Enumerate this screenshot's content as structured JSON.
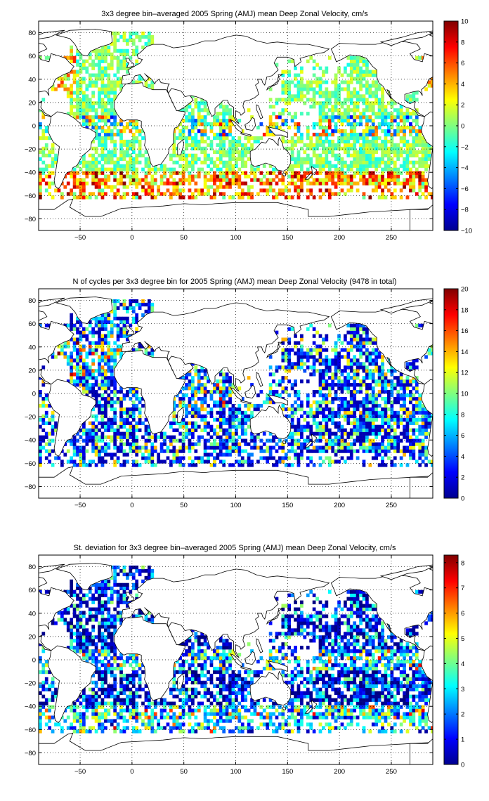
{
  "chart_data": [
    {
      "type": "heatmap",
      "title": "3x3 degree bin–averaged 2005 Spring (AMJ) mean Deep Zonal Velocity, cm/s",
      "xlabel": "",
      "ylabel": "",
      "xlim": [
        -90,
        290
      ],
      "ylim": [
        -90,
        90
      ],
      "xticks": [
        -50,
        0,
        50,
        100,
        150,
        200,
        250
      ],
      "xticklabels": [
        "−50",
        "0",
        "50",
        "100",
        "150",
        "200",
        "250"
      ],
      "yticks": [
        80,
        60,
        40,
        20,
        0,
        -20,
        -40,
        -60,
        -80
      ],
      "yticklabels": [
        "80",
        "60",
        "40",
        "20",
        "0",
        "−20",
        "−40",
        "−60",
        "−80"
      ],
      "grid": true,
      "bin_size_deg": 3,
      "colorbar": {
        "range": [
          -10,
          10
        ],
        "ticks": [
          10,
          8,
          6,
          4,
          2,
          0,
          -2,
          -4,
          -6,
          -8,
          -10
        ],
        "ticklabels": [
          "10",
          "8",
          "6",
          "4",
          "2",
          "0",
          "−2",
          "−4",
          "−6",
          "−8",
          "−10"
        ],
        "colormap": "jet"
      },
      "field": "velocity",
      "data_note": "cell values approximated"
    },
    {
      "type": "heatmap",
      "title": "N of cycles per 3x3 degree bin for 2005 Spring (AMJ) mean Deep Zonal Velocity (9478 in total)",
      "xlabel": "",
      "ylabel": "",
      "xlim": [
        -90,
        290
      ],
      "ylim": [
        -90,
        90
      ],
      "xticks": [
        -50,
        0,
        50,
        100,
        150,
        200,
        250
      ],
      "xticklabels": [
        "−50",
        "0",
        "50",
        "100",
        "150",
        "200",
        "250"
      ],
      "yticks": [
        80,
        60,
        40,
        20,
        0,
        -20,
        -40,
        -60,
        -80
      ],
      "yticklabels": [
        "80",
        "60",
        "40",
        "20",
        "0",
        "−20",
        "−40",
        "−60",
        "−80"
      ],
      "grid": true,
      "bin_size_deg": 3,
      "total_cycles": 9478,
      "colorbar": {
        "range": [
          0,
          20
        ],
        "ticks": [
          20,
          18,
          16,
          14,
          12,
          10,
          8,
          6,
          4,
          2,
          0
        ],
        "ticklabels": [
          "20",
          "18",
          "16",
          "14",
          "12",
          "10",
          "8",
          "6",
          "4",
          "2",
          "0"
        ],
        "colormap": "jet"
      },
      "field": "count"
    },
    {
      "type": "heatmap",
      "title": "St. deviation for 3x3 degree bin–averaged 2005 Spring (AMJ) mean Deep Zonal Velocity, cm/s",
      "xlabel": "",
      "ylabel": "",
      "xlim": [
        -90,
        290
      ],
      "ylim": [
        -90,
        90
      ],
      "xticks": [
        -50,
        0,
        50,
        100,
        150,
        200,
        250
      ],
      "xticklabels": [
        "−50",
        "0",
        "50",
        "100",
        "150",
        "200",
        "250"
      ],
      "yticks": [
        80,
        60,
        40,
        20,
        0,
        -20,
        -40,
        -60,
        -80
      ],
      "yticklabels": [
        "80",
        "60",
        "40",
        "20",
        "0",
        "−20",
        "−40",
        "−60",
        "−80"
      ],
      "grid": true,
      "bin_size_deg": 3,
      "colorbar": {
        "range": [
          0,
          8.3
        ],
        "ticks": [
          8,
          7,
          6,
          5,
          4,
          3,
          2,
          1,
          0
        ],
        "ticklabels": [
          "8",
          "7",
          "6",
          "5",
          "4",
          "3",
          "2",
          "1",
          "0"
        ],
        "colormap": "jet"
      },
      "field": "std"
    }
  ]
}
